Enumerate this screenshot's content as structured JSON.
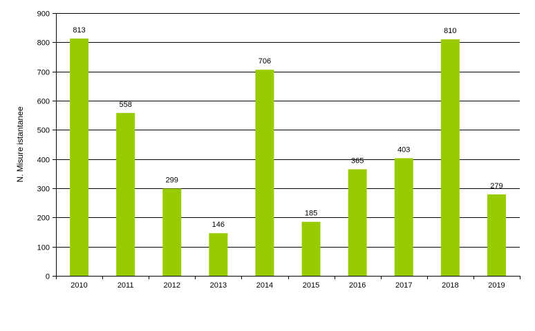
{
  "chart_data": {
    "type": "bar",
    "title": "",
    "xlabel": "",
    "ylabel": "N. Misure istantanee",
    "categories": [
      "2010",
      "2011",
      "2012",
      "2013",
      "2014",
      "2015",
      "2016",
      "2017",
      "2018",
      "2019"
    ],
    "values": [
      813,
      558,
      299,
      146,
      706,
      185,
      365,
      403,
      810,
      279
    ],
    "ylim": [
      0,
      900
    ],
    "yticks": [
      0,
      100,
      200,
      300,
      400,
      500,
      600,
      700,
      800,
      900
    ],
    "grid": true,
    "data_labels": true,
    "legend": "none",
    "bar_color": "#99cc00"
  }
}
